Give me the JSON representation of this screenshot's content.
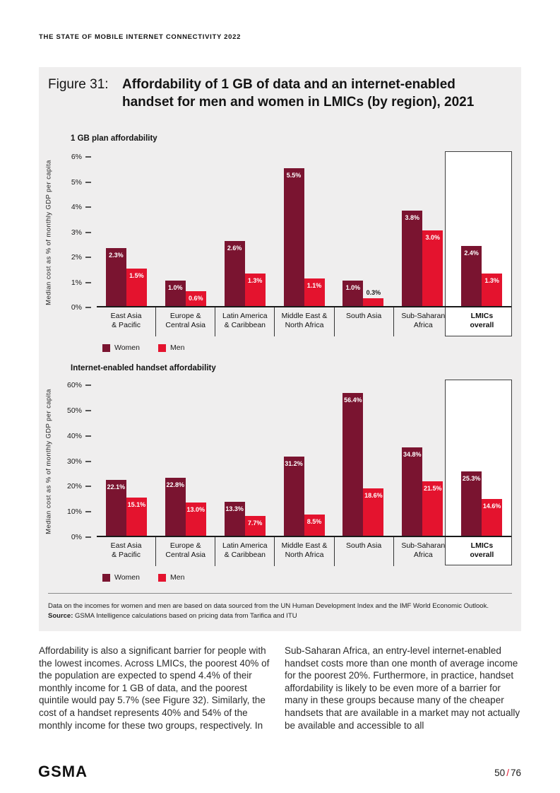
{
  "page": {
    "header": "THE STATE OF MOBILE INTERNET CONNECTIVITY 2022",
    "footer": {
      "logo": "GSMA",
      "page_current": "50",
      "page_sep": "/",
      "page_total": "76"
    }
  },
  "figure": {
    "label": "Figure 31:",
    "title": "Affordability of 1 GB of data and an internet-enabled handset for men and women in LMICs (by region), 2021",
    "footnote": "Data on the incomes for women and men are based on data sourced from the UN Human Development Index and the IMF World Economic Outlook.",
    "source_label": "Source:",
    "source_text": " GSMA Intelligence calculations based on pricing data from Tarifica and ITU"
  },
  "colors": {
    "women": "#7a1430",
    "men": "#e4132e",
    "figure_bg": "#efeeee",
    "accent": "#e4132e"
  },
  "chart_data": [
    {
      "type": "bar",
      "title": "1 GB plan affordability",
      "ylabel": "Median cost as % of monthly GDP per capita",
      "ylim": [
        0,
        6
      ],
      "ytick_step": 1,
      "ytick_suffix": "%",
      "grid": false,
      "legend_position": "bottom-left",
      "categories": [
        [
          "East Asia",
          "& Pacific"
        ],
        [
          "Europe &",
          "Central Asia"
        ],
        [
          "Latin America",
          "& Caribbean"
        ],
        [
          "Middle East &",
          "North Africa"
        ],
        [
          "South Asia"
        ],
        [
          "Sub-Saharan",
          "Africa"
        ],
        [
          "LMICs",
          "overall"
        ]
      ],
      "series": [
        {
          "name": "Women",
          "color_key": "women",
          "values": [
            2.3,
            1.0,
            2.6,
            5.5,
            1.0,
            3.8,
            2.4
          ]
        },
        {
          "name": "Men",
          "color_key": "men",
          "values": [
            1.5,
            0.6,
            1.3,
            1.1,
            0.3,
            3.0,
            1.3
          ]
        }
      ],
      "highlight_last_category": true
    },
    {
      "type": "bar",
      "title": "Internet-enabled handset affordability",
      "ylabel": "Median cost as % of monthly GDP per capita",
      "ylim": [
        0,
        60
      ],
      "ytick_step": 10,
      "ytick_suffix": "%",
      "grid": false,
      "legend_position": "bottom-left",
      "categories": [
        [
          "East Asia",
          "& Pacific"
        ],
        [
          "Europe &",
          "Central Asia"
        ],
        [
          "Latin America",
          "& Caribbean"
        ],
        [
          "Middle East &",
          "North Africa"
        ],
        [
          "South Asia"
        ],
        [
          "Sub-Saharan",
          "Africa"
        ],
        [
          "LMICs",
          "overall"
        ]
      ],
      "series": [
        {
          "name": "Women",
          "color_key": "women",
          "values": [
            22.1,
            22.8,
            13.3,
            31.2,
            56.4,
            34.8,
            25.3
          ]
        },
        {
          "name": "Men",
          "color_key": "men",
          "values": [
            15.1,
            13.0,
            7.7,
            8.5,
            18.6,
            21.5,
            14.6
          ]
        }
      ],
      "highlight_last_category": true
    }
  ],
  "body_text": {
    "left": "Affordability is also a significant barrier for people with the lowest incomes. Across LMICs, the poorest 40% of the population are expected to spend 4.4% of their monthly income for 1 GB of data, and the poorest quintile would pay 5.7% (see Figure 32). Similarly, the cost of a handset represents 40% and 54% of the monthly income for these two groups, respectively. In",
    "right": "Sub-Saharan Africa, an entry-level internet-enabled handset costs more than one month of average income for the poorest 20%. Furthermore, in practice, handset affordability is likely to be even more of a barrier for many in these groups because many of the cheaper handsets that are available in a market may not actually be available and accessible to all"
  }
}
